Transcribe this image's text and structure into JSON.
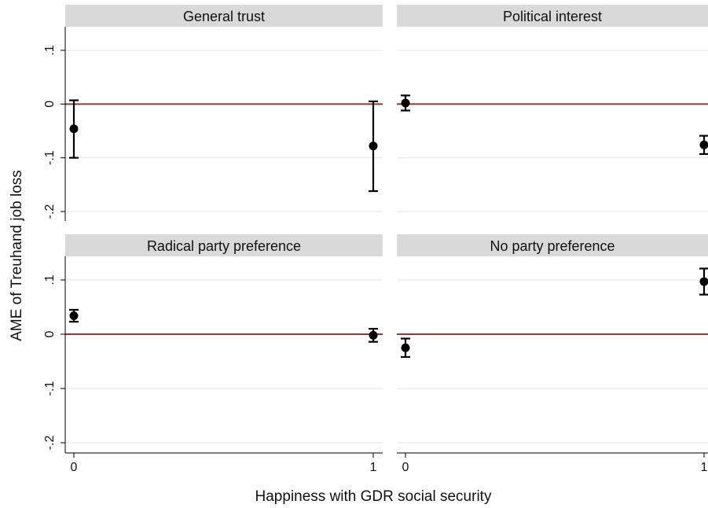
{
  "chart_data": {
    "type": "scatter",
    "subtype": "point-with-error-bars",
    "xlabel": "Happiness with GDR social security",
    "ylabel": "AME of Treuhand job loss",
    "x_ticks": [
      "0",
      "1"
    ],
    "y_ticks": [
      {
        "value": 0.1,
        "label": ".1"
      },
      {
        "value": 0,
        "label": "0"
      },
      {
        "value": -0.1,
        "label": "-.1"
      },
      {
        "value": -0.2,
        "label": "-.2"
      }
    ],
    "ylim": [
      -0.22,
      0.14
    ],
    "grid": "horizontal",
    "reference_line": {
      "y": 0,
      "color": "#8b3a3a"
    },
    "point_color": "#000000",
    "header_color": "#d9d9d9",
    "panels": [
      {
        "title": "General trust",
        "points": [
          {
            "x": 0,
            "y": -0.046,
            "lo": -0.1,
            "hi": 0.007
          },
          {
            "x": 1,
            "y": -0.078,
            "lo": -0.162,
            "hi": 0.005
          }
        ]
      },
      {
        "title": "Political interest",
        "points": [
          {
            "x": 0,
            "y": 0.002,
            "lo": -0.012,
            "hi": 0.016
          },
          {
            "x": 1,
            "y": -0.076,
            "lo": -0.093,
            "hi": -0.059
          }
        ]
      },
      {
        "title": "Radical party preference",
        "points": [
          {
            "x": 0,
            "y": 0.034,
            "lo": 0.023,
            "hi": 0.045
          },
          {
            "x": 1,
            "y": -0.002,
            "lo": -0.014,
            "hi": 0.01
          }
        ]
      },
      {
        "title": "No party preference",
        "points": [
          {
            "x": 0,
            "y": -0.025,
            "lo": -0.042,
            "hi": -0.008
          },
          {
            "x": 1,
            "y": 0.097,
            "lo": 0.073,
            "hi": 0.121
          }
        ]
      }
    ]
  }
}
